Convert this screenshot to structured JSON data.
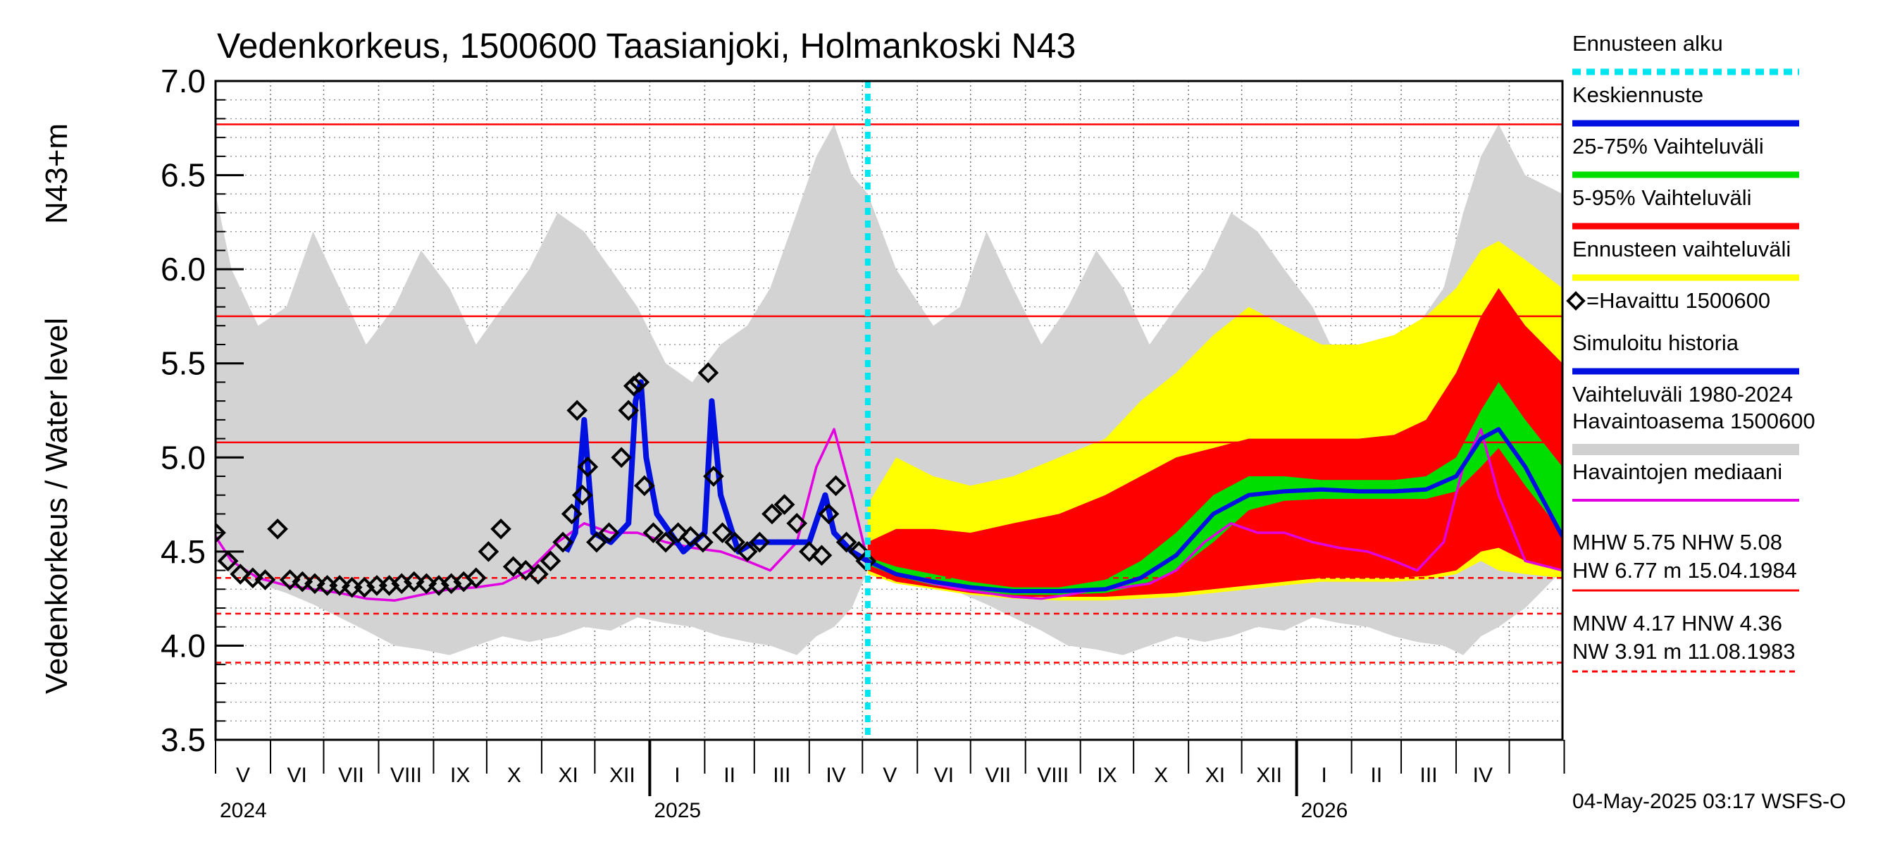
{
  "chart_data": {
    "type": "area",
    "title": "Vedenkorkeus, 1500600 Taasianjoki, Holmankoski N43",
    "ylabel": "Vedenkorkeus / Water level",
    "yunit": "N43+m",
    "ylim": [
      3.5,
      7.0
    ],
    "yticks": [
      "3.5",
      "4.0",
      "4.5",
      "5.0",
      "5.5",
      "6.0",
      "6.5",
      "7.0"
    ],
    "xlim": [
      "2024-05-01",
      "2026-05-31"
    ],
    "forecast_start": "2025-05-04",
    "month_labels": [
      "V",
      "VI",
      "VII",
      "VIII",
      "IX",
      "X",
      "XI",
      "XII",
      "I",
      "II",
      "III",
      "IV",
      "V",
      "VI",
      "VII",
      "VIII",
      "IX",
      "X",
      "XI",
      "XII",
      "I",
      "II",
      "III",
      "IV"
    ],
    "year_labels": [
      {
        "text": "2024",
        "date": "2024-05-01"
      },
      {
        "text": "2025",
        "date": "2025-01-01"
      },
      {
        "text": "2026",
        "date": "2026-01-01"
      }
    ],
    "grid": true,
    "reference_lines": [
      {
        "value": 6.77,
        "style": "solid"
      },
      {
        "value": 5.75,
        "style": "solid"
      },
      {
        "value": 5.08,
        "style": "solid"
      },
      {
        "value": 4.36,
        "style": "dashed"
      },
      {
        "value": 4.17,
        "style": "dashed"
      },
      {
        "value": 3.91,
        "style": "dashed"
      }
    ],
    "legend": [
      {
        "label": "Ennusteen alku",
        "color": "#00e5ee",
        "style": "dashed"
      },
      {
        "label": "Keskiennuste",
        "color": "#0010e0",
        "style": "solid"
      },
      {
        "label": "25-75% Vaihteluväli",
        "color": "#00dd00",
        "style": "solid"
      },
      {
        "label": "5-95% Vaihteluväli",
        "color": "#ff0000",
        "style": "solid"
      },
      {
        "label": "Ennusteen vaihteluväli",
        "color": "#ffff00",
        "style": "solid"
      },
      {
        "label": "=Havaittu 1500600",
        "color": "#000000",
        "style": "marker"
      },
      {
        "label": "Simuloitu historia",
        "color": "#0010e0",
        "style": "solid"
      },
      {
        "label": "Vaihteluväli 1980-2024",
        "label2": " Havaintoasema 1500600",
        "color": "#d0d0d0",
        "style": "thick"
      },
      {
        "label": "Havaintojen mediaani",
        "color": "#e000e0",
        "style": "solid"
      }
    ],
    "stats": [
      {
        "line1": "MHW   5.75 NHW   5.08",
        "line2": "HW   6.77 m 15.04.1984",
        "style": "solid"
      },
      {
        "line1": "MNW   4.17 HNW   4.36",
        "line2": "NW   3.91 m 11.08.1983",
        "style": "dashed"
      }
    ],
    "footer": "04-May-2025 03:17 WSFS-O",
    "colors": {
      "history_band": "#d3d3d3",
      "forecast_range": "#ffff00",
      "p5_95": "#ff0000",
      "p25_75": "#00dd00",
      "mean_forecast": "#0010e0",
      "simulated": "#0010e0",
      "median": "#e000e0",
      "forecast_start": "#00e5ee",
      "ref_line": "#ff0000"
    },
    "series": [
      {
        "name": "Vaihteluväli 1980-2024 Havaintoasema 1500600",
        "kind": "band",
        "x": [
          "2024-05-01",
          "2024-05-10",
          "2024-05-25",
          "2024-06-10",
          "2024-06-25",
          "2024-07-10",
          "2024-07-25",
          "2024-08-10",
          "2024-08-25",
          "2024-09-10",
          "2024-09-25",
          "2024-10-10",
          "2024-10-25",
          "2024-11-10",
          "2024-11-25",
          "2024-12-10",
          "2024-12-25",
          "2025-01-10",
          "2025-01-25",
          "2025-02-10",
          "2025-02-25",
          "2025-03-10",
          "2025-03-25",
          "2025-04-05",
          "2025-04-15",
          "2025-04-25",
          "2025-05-04",
          "2025-05-20",
          "2025-06-10",
          "2025-06-25",
          "2025-07-10",
          "2025-07-25",
          "2025-08-10",
          "2025-08-25",
          "2025-09-10",
          "2025-09-25",
          "2025-10-10",
          "2025-10-25",
          "2025-11-10",
          "2025-11-25",
          "2025-12-10",
          "2025-12-25",
          "2026-01-10",
          "2026-01-25",
          "2026-02-10",
          "2026-02-25",
          "2026-03-10",
          "2026-03-25",
          "2026-04-05",
          "2026-04-15",
          "2026-04-25",
          "2026-05-10",
          "2026-05-31"
        ],
        "low": [
          4.45,
          4.38,
          4.33,
          4.28,
          4.22,
          4.15,
          4.08,
          4.0,
          3.98,
          3.95,
          4.0,
          4.05,
          4.02,
          4.05,
          4.1,
          4.08,
          4.15,
          4.12,
          4.1,
          4.05,
          4.02,
          4.0,
          3.95,
          4.05,
          4.1,
          4.2,
          4.4,
          4.38,
          4.33,
          4.28,
          4.22,
          4.15,
          4.08,
          4.0,
          3.98,
          3.95,
          4.0,
          4.05,
          4.02,
          4.05,
          4.1,
          4.08,
          4.15,
          4.12,
          4.1,
          4.05,
          4.02,
          4.0,
          3.95,
          4.05,
          4.1,
          4.2,
          4.4
        ],
        "high": [
          6.4,
          6.0,
          5.7,
          5.8,
          6.2,
          5.9,
          5.6,
          5.8,
          6.1,
          5.9,
          5.6,
          5.8,
          6.0,
          6.3,
          6.2,
          6.0,
          5.8,
          5.5,
          5.4,
          5.6,
          5.7,
          5.9,
          6.3,
          6.6,
          6.77,
          6.5,
          6.4,
          6.0,
          5.7,
          5.8,
          6.2,
          5.9,
          5.6,
          5.8,
          6.1,
          5.9,
          5.6,
          5.8,
          6.0,
          6.3,
          6.2,
          6.0,
          5.8,
          5.5,
          5.4,
          5.6,
          5.7,
          5.9,
          6.3,
          6.6,
          6.77,
          6.5,
          6.4
        ]
      },
      {
        "name": "Ennusteen vaihteluväli",
        "kind": "band",
        "x": [
          "2025-05-04",
          "2025-05-20",
          "2025-06-10",
          "2025-07-01",
          "2025-07-25",
          "2025-08-20",
          "2025-09-15",
          "2025-10-05",
          "2025-10-25",
          "2025-11-15",
          "2025-12-05",
          "2025-12-25",
          "2026-01-15",
          "2026-02-05",
          "2026-02-25",
          "2026-03-15",
          "2026-04-01",
          "2026-04-15",
          "2026-04-25",
          "2026-05-10",
          "2026-05-31"
        ],
        "low": [
          4.38,
          4.33,
          4.3,
          4.27,
          4.25,
          4.24,
          4.24,
          4.25,
          4.26,
          4.28,
          4.3,
          4.32,
          4.34,
          4.34,
          4.34,
          4.35,
          4.38,
          4.45,
          4.4,
          4.38,
          4.36
        ],
        "high": [
          4.75,
          5.0,
          4.9,
          4.85,
          4.9,
          5.0,
          5.1,
          5.3,
          5.45,
          5.65,
          5.8,
          5.7,
          5.6,
          5.6,
          5.65,
          5.75,
          5.9,
          6.1,
          6.15,
          6.05,
          5.9
        ]
      },
      {
        "name": "5-95% Vaihteluväli",
        "kind": "band",
        "x": [
          "2025-05-04",
          "2025-05-20",
          "2025-06-10",
          "2025-07-01",
          "2025-07-25",
          "2025-08-20",
          "2025-09-15",
          "2025-10-05",
          "2025-10-25",
          "2025-11-15",
          "2025-12-05",
          "2025-12-25",
          "2026-01-15",
          "2026-02-05",
          "2026-02-25",
          "2026-03-15",
          "2026-04-01",
          "2026-04-15",
          "2026-04-25",
          "2026-05-10",
          "2026-05-31"
        ],
        "low": [
          4.4,
          4.34,
          4.31,
          4.28,
          4.26,
          4.26,
          4.26,
          4.27,
          4.28,
          4.3,
          4.32,
          4.34,
          4.36,
          4.36,
          4.36,
          4.37,
          4.4,
          4.5,
          4.52,
          4.45,
          4.4
        ],
        "high": [
          4.55,
          4.62,
          4.62,
          4.6,
          4.65,
          4.7,
          4.8,
          4.9,
          5.0,
          5.05,
          5.1,
          5.1,
          5.1,
          5.1,
          5.12,
          5.2,
          5.45,
          5.75,
          5.9,
          5.7,
          5.5
        ]
      },
      {
        "name": "25-75% Vaihteluväli",
        "kind": "band",
        "x": [
          "2025-05-04",
          "2025-05-20",
          "2025-06-10",
          "2025-07-01",
          "2025-07-25",
          "2025-08-20",
          "2025-09-15",
          "2025-10-05",
          "2025-10-25",
          "2025-11-15",
          "2025-12-05",
          "2025-12-25",
          "2026-01-15",
          "2026-02-05",
          "2026-02-25",
          "2026-03-15",
          "2026-04-01",
          "2026-04-15",
          "2026-04-25",
          "2026-05-10",
          "2026-05-31"
        ],
        "low": [
          4.43,
          4.37,
          4.32,
          4.29,
          4.27,
          4.27,
          4.28,
          4.32,
          4.4,
          4.55,
          4.72,
          4.77,
          4.78,
          4.78,
          4.78,
          4.78,
          4.82,
          4.95,
          5.05,
          4.85,
          4.6
        ],
        "high": [
          4.47,
          4.42,
          4.38,
          4.34,
          4.31,
          4.31,
          4.35,
          4.45,
          4.6,
          4.8,
          4.9,
          4.9,
          4.88,
          4.88,
          4.88,
          4.9,
          5.0,
          5.25,
          5.4,
          5.2,
          4.95
        ]
      },
      {
        "name": "Keskiennuste",
        "kind": "line",
        "x": [
          "2025-05-04",
          "2025-05-20",
          "2025-06-10",
          "2025-07-01",
          "2025-07-25",
          "2025-08-20",
          "2025-09-15",
          "2025-10-05",
          "2025-10-25",
          "2025-11-15",
          "2025-12-05",
          "2025-12-25",
          "2026-01-15",
          "2026-02-05",
          "2026-02-25",
          "2026-03-15",
          "2026-04-01",
          "2026-04-15",
          "2026-04-25",
          "2026-05-10",
          "2026-05-31"
        ],
        "y": [
          4.45,
          4.38,
          4.34,
          4.31,
          4.29,
          4.29,
          4.3,
          4.36,
          4.48,
          4.7,
          4.8,
          4.82,
          4.83,
          4.82,
          4.82,
          4.83,
          4.9,
          5.1,
          5.15,
          4.95,
          4.58
        ]
      },
      {
        "name": "Havaintojen mediaani",
        "kind": "line",
        "x": [
          "2024-05-01",
          "2024-05-10",
          "2024-05-25",
          "2024-06-10",
          "2024-06-25",
          "2024-07-10",
          "2024-07-25",
          "2024-08-10",
          "2024-08-25",
          "2024-09-10",
          "2024-09-25",
          "2024-10-10",
          "2024-10-25",
          "2024-11-10",
          "2024-11-25",
          "2024-12-10",
          "2024-12-25",
          "2025-01-10",
          "2025-01-25",
          "2025-02-10",
          "2025-02-25",
          "2025-03-10",
          "2025-03-25",
          "2025-04-05",
          "2025-04-15",
          "2025-04-25",
          "2025-05-04",
          "2025-05-20",
          "2025-06-10",
          "2025-06-25",
          "2025-07-10",
          "2025-07-25",
          "2025-08-10",
          "2025-08-25",
          "2025-09-10",
          "2025-09-25",
          "2025-10-10",
          "2025-10-25",
          "2025-11-10",
          "2025-11-25",
          "2025-12-10",
          "2025-12-25",
          "2026-01-10",
          "2026-01-25",
          "2026-02-10",
          "2026-02-25",
          "2026-03-10",
          "2026-03-25",
          "2026-04-05",
          "2026-04-15",
          "2026-04-25",
          "2026-05-10",
          "2026-05-31"
        ],
        "y": [
          4.58,
          4.45,
          4.36,
          4.32,
          4.3,
          4.28,
          4.25,
          4.24,
          4.27,
          4.3,
          4.31,
          4.33,
          4.4,
          4.55,
          4.65,
          4.6,
          4.6,
          4.55,
          4.52,
          4.5,
          4.45,
          4.4,
          4.55,
          4.95,
          5.15,
          4.8,
          4.45,
          4.38,
          4.33,
          4.3,
          4.28,
          4.26,
          4.25,
          4.27,
          4.3,
          4.31,
          4.33,
          4.4,
          4.55,
          4.65,
          4.6,
          4.6,
          4.55,
          4.52,
          4.5,
          4.45,
          4.4,
          4.55,
          4.95,
          5.15,
          4.8,
          4.45,
          4.4
        ]
      },
      {
        "name": "Simuloitu historia",
        "kind": "line",
        "x": [
          "2024-11-15",
          "2024-11-20",
          "2024-11-25",
          "2024-11-30",
          "2024-12-10",
          "2024-12-20",
          "2024-12-24",
          "2024-12-27",
          "2024-12-30",
          "2025-01-05",
          "2025-01-20",
          "2025-02-01",
          "2025-02-05",
          "2025-02-10",
          "2025-02-20",
          "2025-03-01",
          "2025-04-01",
          "2025-04-10",
          "2025-04-15",
          "2025-04-25",
          "2025-05-04"
        ],
        "y": [
          4.5,
          4.6,
          5.2,
          4.6,
          4.55,
          4.65,
          5.3,
          5.4,
          5.0,
          4.7,
          4.5,
          4.6,
          5.3,
          4.8,
          4.5,
          4.55,
          4.55,
          4.8,
          4.6,
          4.5,
          4.45
        ]
      },
      {
        "name": "=Havaittu 1500600",
        "kind": "markers",
        "x": [
          "2024-05-01",
          "2024-05-08",
          "2024-05-15",
          "2024-05-22",
          "2024-05-29",
          "2024-06-05",
          "2024-06-12",
          "2024-06-19",
          "2024-06-26",
          "2024-07-03",
          "2024-07-10",
          "2024-07-17",
          "2024-07-24",
          "2024-07-31",
          "2024-08-07",
          "2024-08-14",
          "2024-08-21",
          "2024-08-28",
          "2024-09-04",
          "2024-09-11",
          "2024-09-18",
          "2024-09-25",
          "2024-10-02",
          "2024-10-09",
          "2024-10-16",
          "2024-10-23",
          "2024-10-30",
          "2024-11-06",
          "2024-11-13",
          "2024-11-18",
          "2024-11-21",
          "2024-11-24",
          "2024-11-27",
          "2024-12-02",
          "2024-12-09",
          "2024-12-16",
          "2024-12-20",
          "2024-12-23",
          "2024-12-26",
          "2024-12-29",
          "2025-01-03",
          "2025-01-10",
          "2025-01-17",
          "2025-01-24",
          "2025-01-31",
          "2025-02-03",
          "2025-02-06",
          "2025-02-11",
          "2025-02-18",
          "2025-02-25",
          "2025-03-04",
          "2025-03-11",
          "2025-03-18",
          "2025-03-25",
          "2025-04-01",
          "2025-04-08",
          "2025-04-12",
          "2025-04-16",
          "2025-04-22",
          "2025-04-29",
          "2025-05-03"
        ],
        "y": [
          4.6,
          4.45,
          4.38,
          4.36,
          4.35,
          4.62,
          4.35,
          4.34,
          4.33,
          4.32,
          4.32,
          4.31,
          4.31,
          4.32,
          4.32,
          4.33,
          4.34,
          4.33,
          4.32,
          4.33,
          4.34,
          4.36,
          4.5,
          4.62,
          4.42,
          4.4,
          4.38,
          4.45,
          4.55,
          4.7,
          5.25,
          4.8,
          4.95,
          4.55,
          4.6,
          5.0,
          5.25,
          5.38,
          5.4,
          4.85,
          4.6,
          4.55,
          4.6,
          4.58,
          4.55,
          5.45,
          4.9,
          4.6,
          4.55,
          4.5,
          4.55,
          4.7,
          4.75,
          4.65,
          4.5,
          4.48,
          4.7,
          4.85,
          4.55,
          4.5,
          4.45
        ]
      }
    ]
  }
}
